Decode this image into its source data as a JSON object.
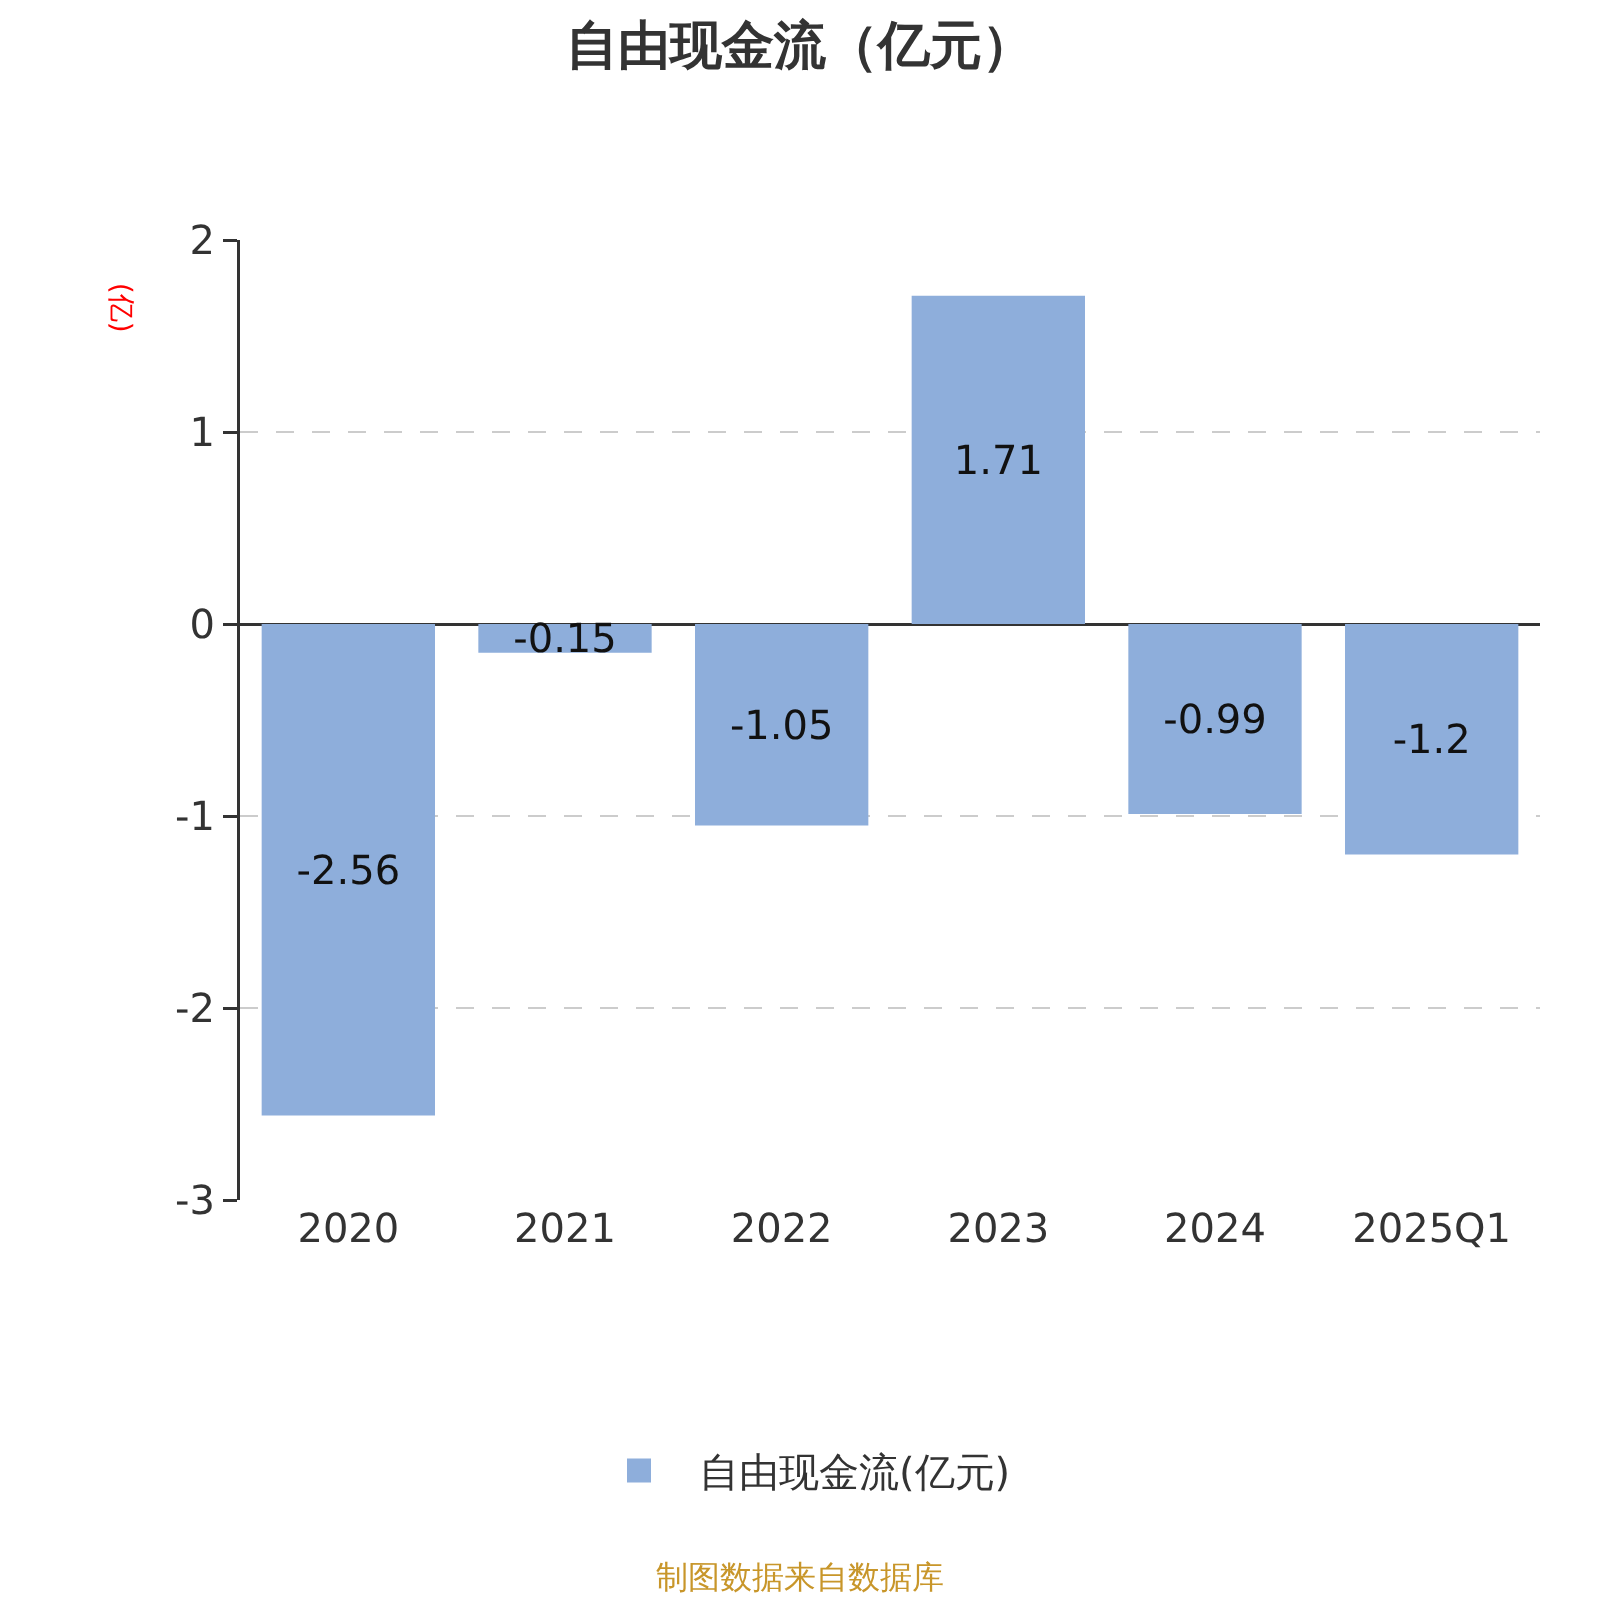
{
  "chart_data": {
    "type": "bar",
    "title": "自由现金流（亿元）",
    "ylabel": "(亿)",
    "categories": [
      "2020",
      "2021",
      "2022",
      "2023",
      "2024",
      "2025Q1"
    ],
    "series": [
      {
        "name": "自由现金流(亿元)",
        "color": "#8eaedb",
        "values": [
          -2.56,
          -0.15,
          -1.05,
          1.71,
          -0.99,
          -1.2
        ]
      }
    ],
    "ylim": [
      -3,
      2
    ],
    "yticks": [
      -3,
      -2,
      -1,
      0,
      1,
      2
    ],
    "grid": "y",
    "legend": "bottom",
    "data_labels": true,
    "annotations": [
      "制图数据来自数据库"
    ]
  }
}
